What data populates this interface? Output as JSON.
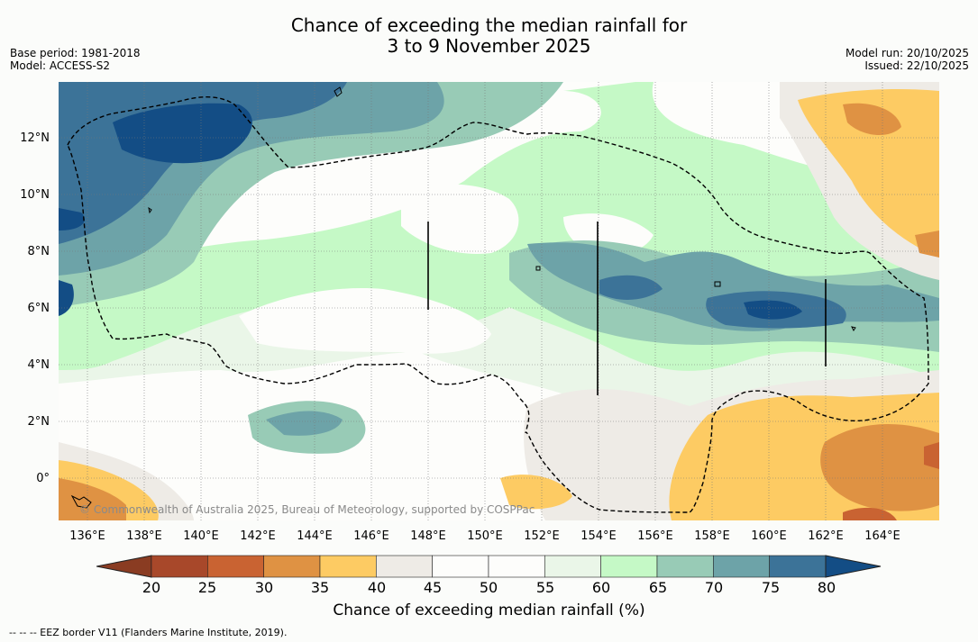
{
  "title_line1": "Chance of exceeding the median rainfall for",
  "title_line2": "3 to 9 November 2025",
  "meta_left": {
    "base_period": "Base period: 1981-2018",
    "model": "Model: ACCESS-S2"
  },
  "meta_right": {
    "model_run": "Model run: 20/10/2025",
    "issued": "Issued: 22/10/2025"
  },
  "map": {
    "lat_labels": [
      "12°N",
      "10°N",
      "8°N",
      "6°N",
      "4°N",
      "2°N",
      "0°"
    ],
    "lon_labels": [
      "136°E",
      "138°E",
      "140°E",
      "142°E",
      "144°E",
      "146°E",
      "148°E",
      "150°E",
      "152°E",
      "154°E",
      "156°E",
      "158°E",
      "160°E",
      "162°E",
      "164°E"
    ],
    "copyright": "© Commonwealth of Australia 2025, Bureau of Meteorology, supported by COSPPac",
    "colors": {
      "c20": "#a8482a",
      "c25": "#c96332",
      "c30": "#df9243",
      "c35": "#fdcb63",
      "c40": "#eeebe6",
      "c45": "#fdfdfb",
      "c50": "#fdfdfb",
      "c55": "#eaf6e8",
      "c60": "#c5f9c6",
      "c65": "#98cbb6",
      "c70": "#6da3a8",
      "c75": "#3c7398",
      "c80": "#134d85"
    }
  },
  "colorbar": {
    "ticks": [
      "20",
      "25",
      "30",
      "35",
      "40",
      "45",
      "50",
      "55",
      "60",
      "65",
      "70",
      "75",
      "80"
    ],
    "colors": [
      "#a8482a",
      "#c96332",
      "#df9243",
      "#fdcb63",
      "#eeebe6",
      "#fdfdfb",
      "#fdfdfb",
      "#eaf6e8",
      "#c5f9c6",
      "#98cbb6",
      "#6da3a8",
      "#3c7398"
    ],
    "low_color": "#8a3c22",
    "high_color": "#134d85",
    "title": "Chance of exceeding median rainfall (%)"
  },
  "footer": "--  --  -- EEZ border V11 (Flanders Marine Institute, 2019)."
}
